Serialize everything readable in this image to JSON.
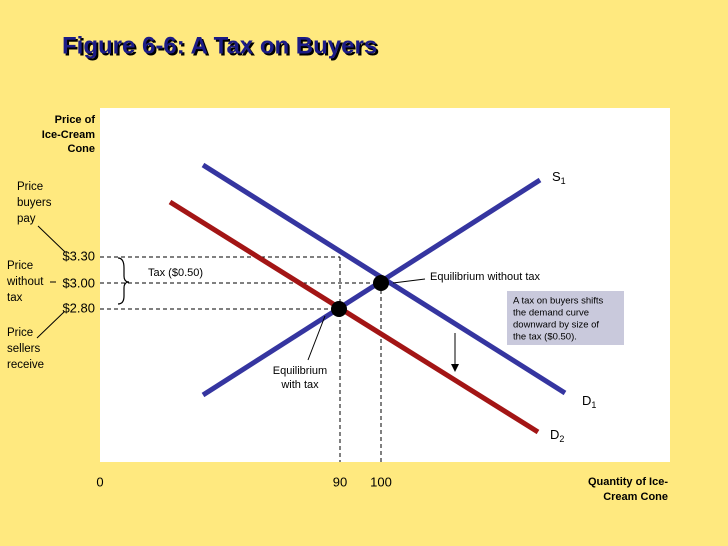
{
  "title": "Figure 6-6: A Tax on Buyers",
  "y_axis_label": [
    "Price of",
    "Ice-Cream",
    "Cone"
  ],
  "x_axis_label": [
    "Quantity of Ice-",
    "Cream Cone"
  ],
  "price_labels": [
    "$3.30",
    "$3.00",
    "$2.80"
  ],
  "quantity_labels": [
    "0",
    "90",
    "100"
  ],
  "curves": [
    {
      "letter": "S",
      "subscript": "1"
    },
    {
      "letter": "D",
      "subscript": "1"
    },
    {
      "letter": "D",
      "subscript": "2"
    }
  ],
  "annotations": {
    "price_buyers_pay": [
      "Price",
      "buyers",
      "pay"
    ],
    "price_without_tax": [
      "Price",
      "without",
      "tax"
    ],
    "price_sellers_receive": [
      "Price",
      "sellers",
      "receive"
    ],
    "tax": "Tax ($0.50)",
    "equilibrium_without_tax": "Equilibrium without tax",
    "equilibrium_with_tax": [
      "Equilibrium",
      "with tax"
    ],
    "tax_note": [
      "A tax on buyers shifts",
      "the demand curve",
      "downward by size of",
      "the tax ($0.50)."
    ]
  }
}
